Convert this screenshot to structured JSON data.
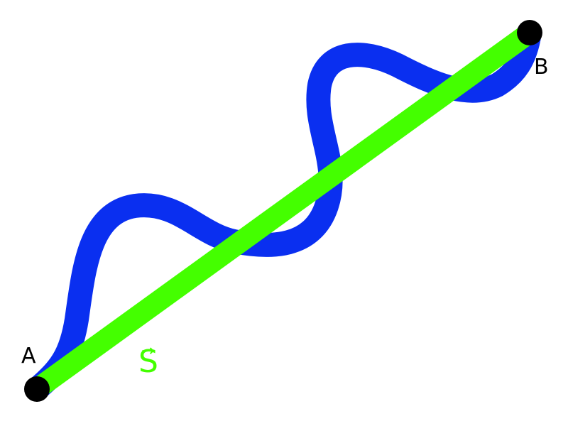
{
  "colors": {
    "background": "#ffffff",
    "path": "#0a2ff0",
    "displacement": "#44ff00",
    "point": "#000000"
  },
  "points": {
    "start_label": "A",
    "end_label": "B"
  },
  "vector": {
    "symbol": "S",
    "arrow": "→"
  }
}
